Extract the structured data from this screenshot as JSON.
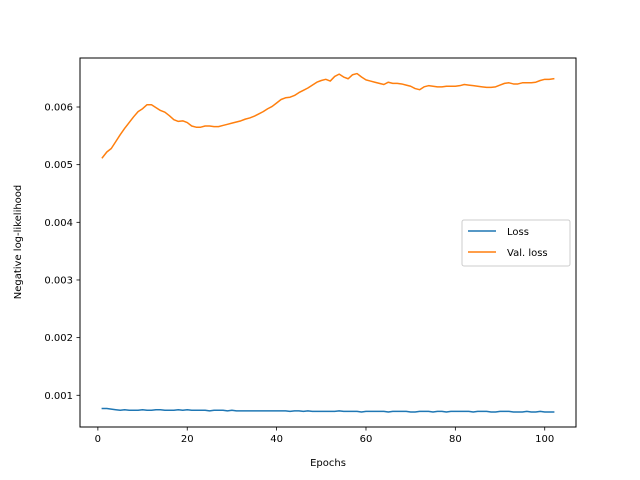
{
  "chart_data": {
    "type": "line",
    "xlabel": "Epochs",
    "ylabel": "Negative log-likelihood",
    "xlim": [
      -4,
      107
    ],
    "ylim": [
      0.00045,
      0.00685
    ],
    "xticks": [
      0,
      20,
      40,
      60,
      80,
      100
    ],
    "xtick_labels": [
      "0",
      "20",
      "40",
      "60",
      "80",
      "100"
    ],
    "yticks": [
      0.001,
      0.002,
      0.003,
      0.004,
      0.005,
      0.006
    ],
    "ytick_labels": [
      "0.001",
      "0.002",
      "0.003",
      "0.004",
      "0.005",
      "0.006"
    ],
    "grid": false,
    "legend_position": "center-right",
    "x": [
      1,
      2,
      3,
      4,
      5,
      6,
      7,
      8,
      9,
      10,
      11,
      12,
      13,
      14,
      15,
      16,
      17,
      18,
      19,
      20,
      21,
      22,
      23,
      24,
      25,
      26,
      27,
      28,
      29,
      30,
      31,
      32,
      33,
      34,
      35,
      36,
      37,
      38,
      39,
      40,
      41,
      42,
      43,
      44,
      45,
      46,
      47,
      48,
      49,
      50,
      51,
      52,
      53,
      54,
      55,
      56,
      57,
      58,
      59,
      60,
      61,
      62,
      63,
      64,
      65,
      66,
      67,
      68,
      69,
      70,
      71,
      72,
      73,
      74,
      75,
      76,
      77,
      78,
      79,
      80,
      81,
      82,
      83,
      84,
      85,
      86,
      87,
      88,
      89,
      90,
      91,
      92,
      93,
      94,
      95,
      96,
      97,
      98,
      99,
      100,
      101,
      102
    ],
    "series": [
      {
        "name": "Loss",
        "color": "#1f77b4",
        "values": [
          0.00077,
          0.00077,
          0.00076,
          0.00075,
          0.00074,
          0.00075,
          0.00074,
          0.00074,
          0.00074,
          0.00075,
          0.00074,
          0.00074,
          0.00075,
          0.00075,
          0.00074,
          0.00074,
          0.00074,
          0.00075,
          0.00074,
          0.00075,
          0.00074,
          0.00074,
          0.00074,
          0.00074,
          0.00073,
          0.00074,
          0.00074,
          0.00074,
          0.00073,
          0.00074,
          0.00073,
          0.00073,
          0.00073,
          0.00073,
          0.00073,
          0.00073,
          0.00073,
          0.00073,
          0.00073,
          0.00073,
          0.00073,
          0.00073,
          0.00072,
          0.00073,
          0.00073,
          0.00072,
          0.00073,
          0.00072,
          0.00072,
          0.00072,
          0.00072,
          0.00072,
          0.00072,
          0.00073,
          0.00072,
          0.00072,
          0.00072,
          0.00072,
          0.00071,
          0.00072,
          0.00072,
          0.00072,
          0.00072,
          0.00072,
          0.00071,
          0.00072,
          0.00072,
          0.00072,
          0.00072,
          0.00071,
          0.00071,
          0.00072,
          0.00072,
          0.00072,
          0.00071,
          0.00072,
          0.00072,
          0.00071,
          0.00072,
          0.00072,
          0.00072,
          0.00072,
          0.00072,
          0.00071,
          0.00072,
          0.00072,
          0.00072,
          0.00071,
          0.00071,
          0.00072,
          0.00072,
          0.00072,
          0.00071,
          0.00071,
          0.00071,
          0.00072,
          0.00071,
          0.00071,
          0.00072,
          0.00071,
          0.00071,
          0.00071
        ]
      },
      {
        "name": "Val. loss",
        "color": "#ff7f0e",
        "values": [
          0.00512,
          0.00522,
          0.00528,
          0.0054,
          0.00552,
          0.00563,
          0.00573,
          0.00583,
          0.00592,
          0.00597,
          0.00604,
          0.00604,
          0.00599,
          0.00594,
          0.00591,
          0.00585,
          0.00578,
          0.00575,
          0.00576,
          0.00573,
          0.00567,
          0.00565,
          0.00565,
          0.00567,
          0.00567,
          0.00566,
          0.00566,
          0.00568,
          0.0057,
          0.00572,
          0.00574,
          0.00576,
          0.00579,
          0.00581,
          0.00584,
          0.00588,
          0.00592,
          0.00597,
          0.00601,
          0.00607,
          0.00613,
          0.00616,
          0.00617,
          0.0062,
          0.00625,
          0.00629,
          0.00633,
          0.00638,
          0.00643,
          0.00646,
          0.00648,
          0.00645,
          0.00653,
          0.00657,
          0.00652,
          0.00649,
          0.00656,
          0.00658,
          0.00652,
          0.00647,
          0.00645,
          0.00643,
          0.00641,
          0.00639,
          0.00643,
          0.00641,
          0.00641,
          0.0064,
          0.00638,
          0.00636,
          0.00632,
          0.0063,
          0.00635,
          0.00637,
          0.00636,
          0.00635,
          0.00635,
          0.00636,
          0.00636,
          0.00636,
          0.00637,
          0.00639,
          0.00638,
          0.00637,
          0.00636,
          0.00635,
          0.00634,
          0.00634,
          0.00635,
          0.00638,
          0.00641,
          0.00642,
          0.0064,
          0.0064,
          0.00642,
          0.00642,
          0.00642,
          0.00643,
          0.00646,
          0.00648,
          0.00648,
          0.00649
        ]
      }
    ]
  }
}
